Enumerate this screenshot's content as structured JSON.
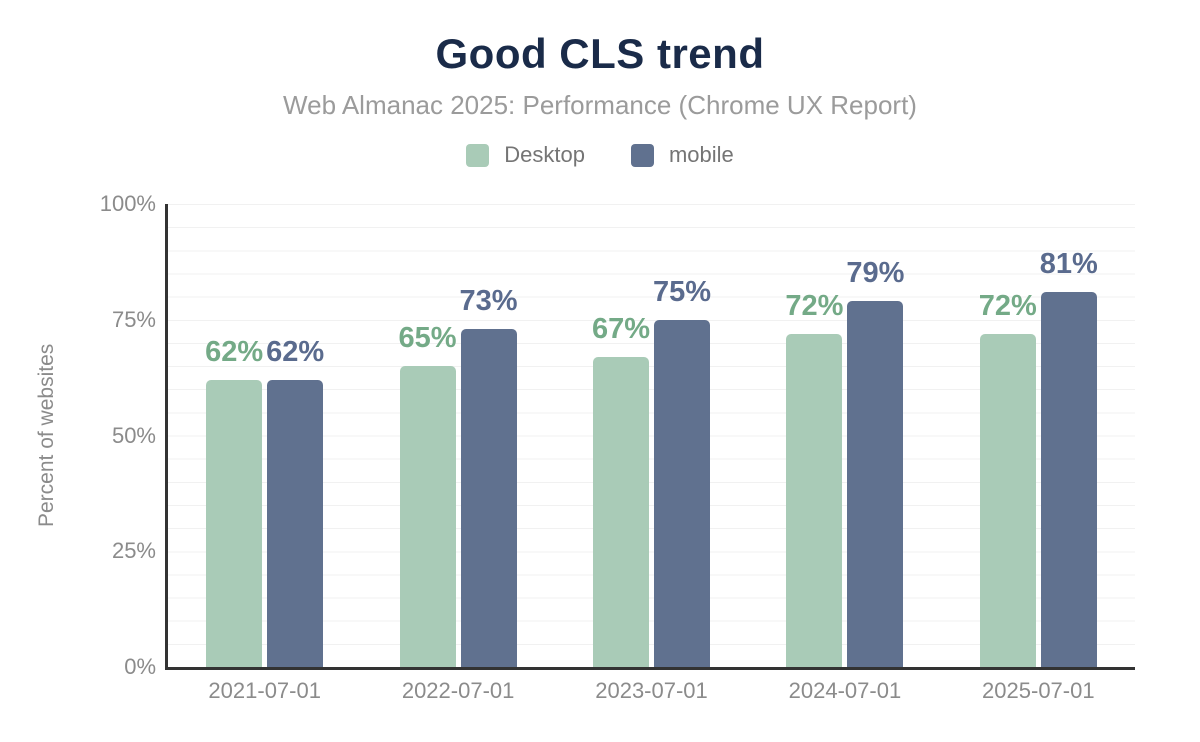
{
  "chart_data": {
    "type": "bar",
    "title": "Good CLS trend",
    "subtitle": "Web Almanac 2025: Performance (Chrome UX Report)",
    "categories": [
      "2021-07-01",
      "2022-07-01",
      "2023-07-01",
      "2024-07-01",
      "2025-07-01"
    ],
    "series": [
      {
        "name": "Desktop",
        "color": "#a9cbb7",
        "label_color": "#74aa87",
        "values": [
          62,
          65,
          67,
          72,
          72
        ]
      },
      {
        "name": "mobile",
        "color": "#60718f",
        "label_color": "#5a6b8e",
        "values": [
          62,
          73,
          75,
          79,
          81
        ]
      }
    ],
    "xlabel": "",
    "ylabel": "Percent of websites",
    "ylim": [
      0,
      100
    ],
    "yticks": [
      0,
      25,
      50,
      75,
      100
    ],
    "ytick_format": "{value}%",
    "data_label_format": "{value}%",
    "grid": "faint horizontal minor gridlines every 5%, no vertical gridlines",
    "legend_position": "top center"
  },
  "colors": {
    "background": "#ffffff",
    "title": "#1a2b49",
    "subtitle": "#9b9b9b",
    "legend_text": "#757575",
    "axis_text": "#8b8b8b",
    "axis_line": "#333333",
    "gridline": "#f1f1f1"
  }
}
